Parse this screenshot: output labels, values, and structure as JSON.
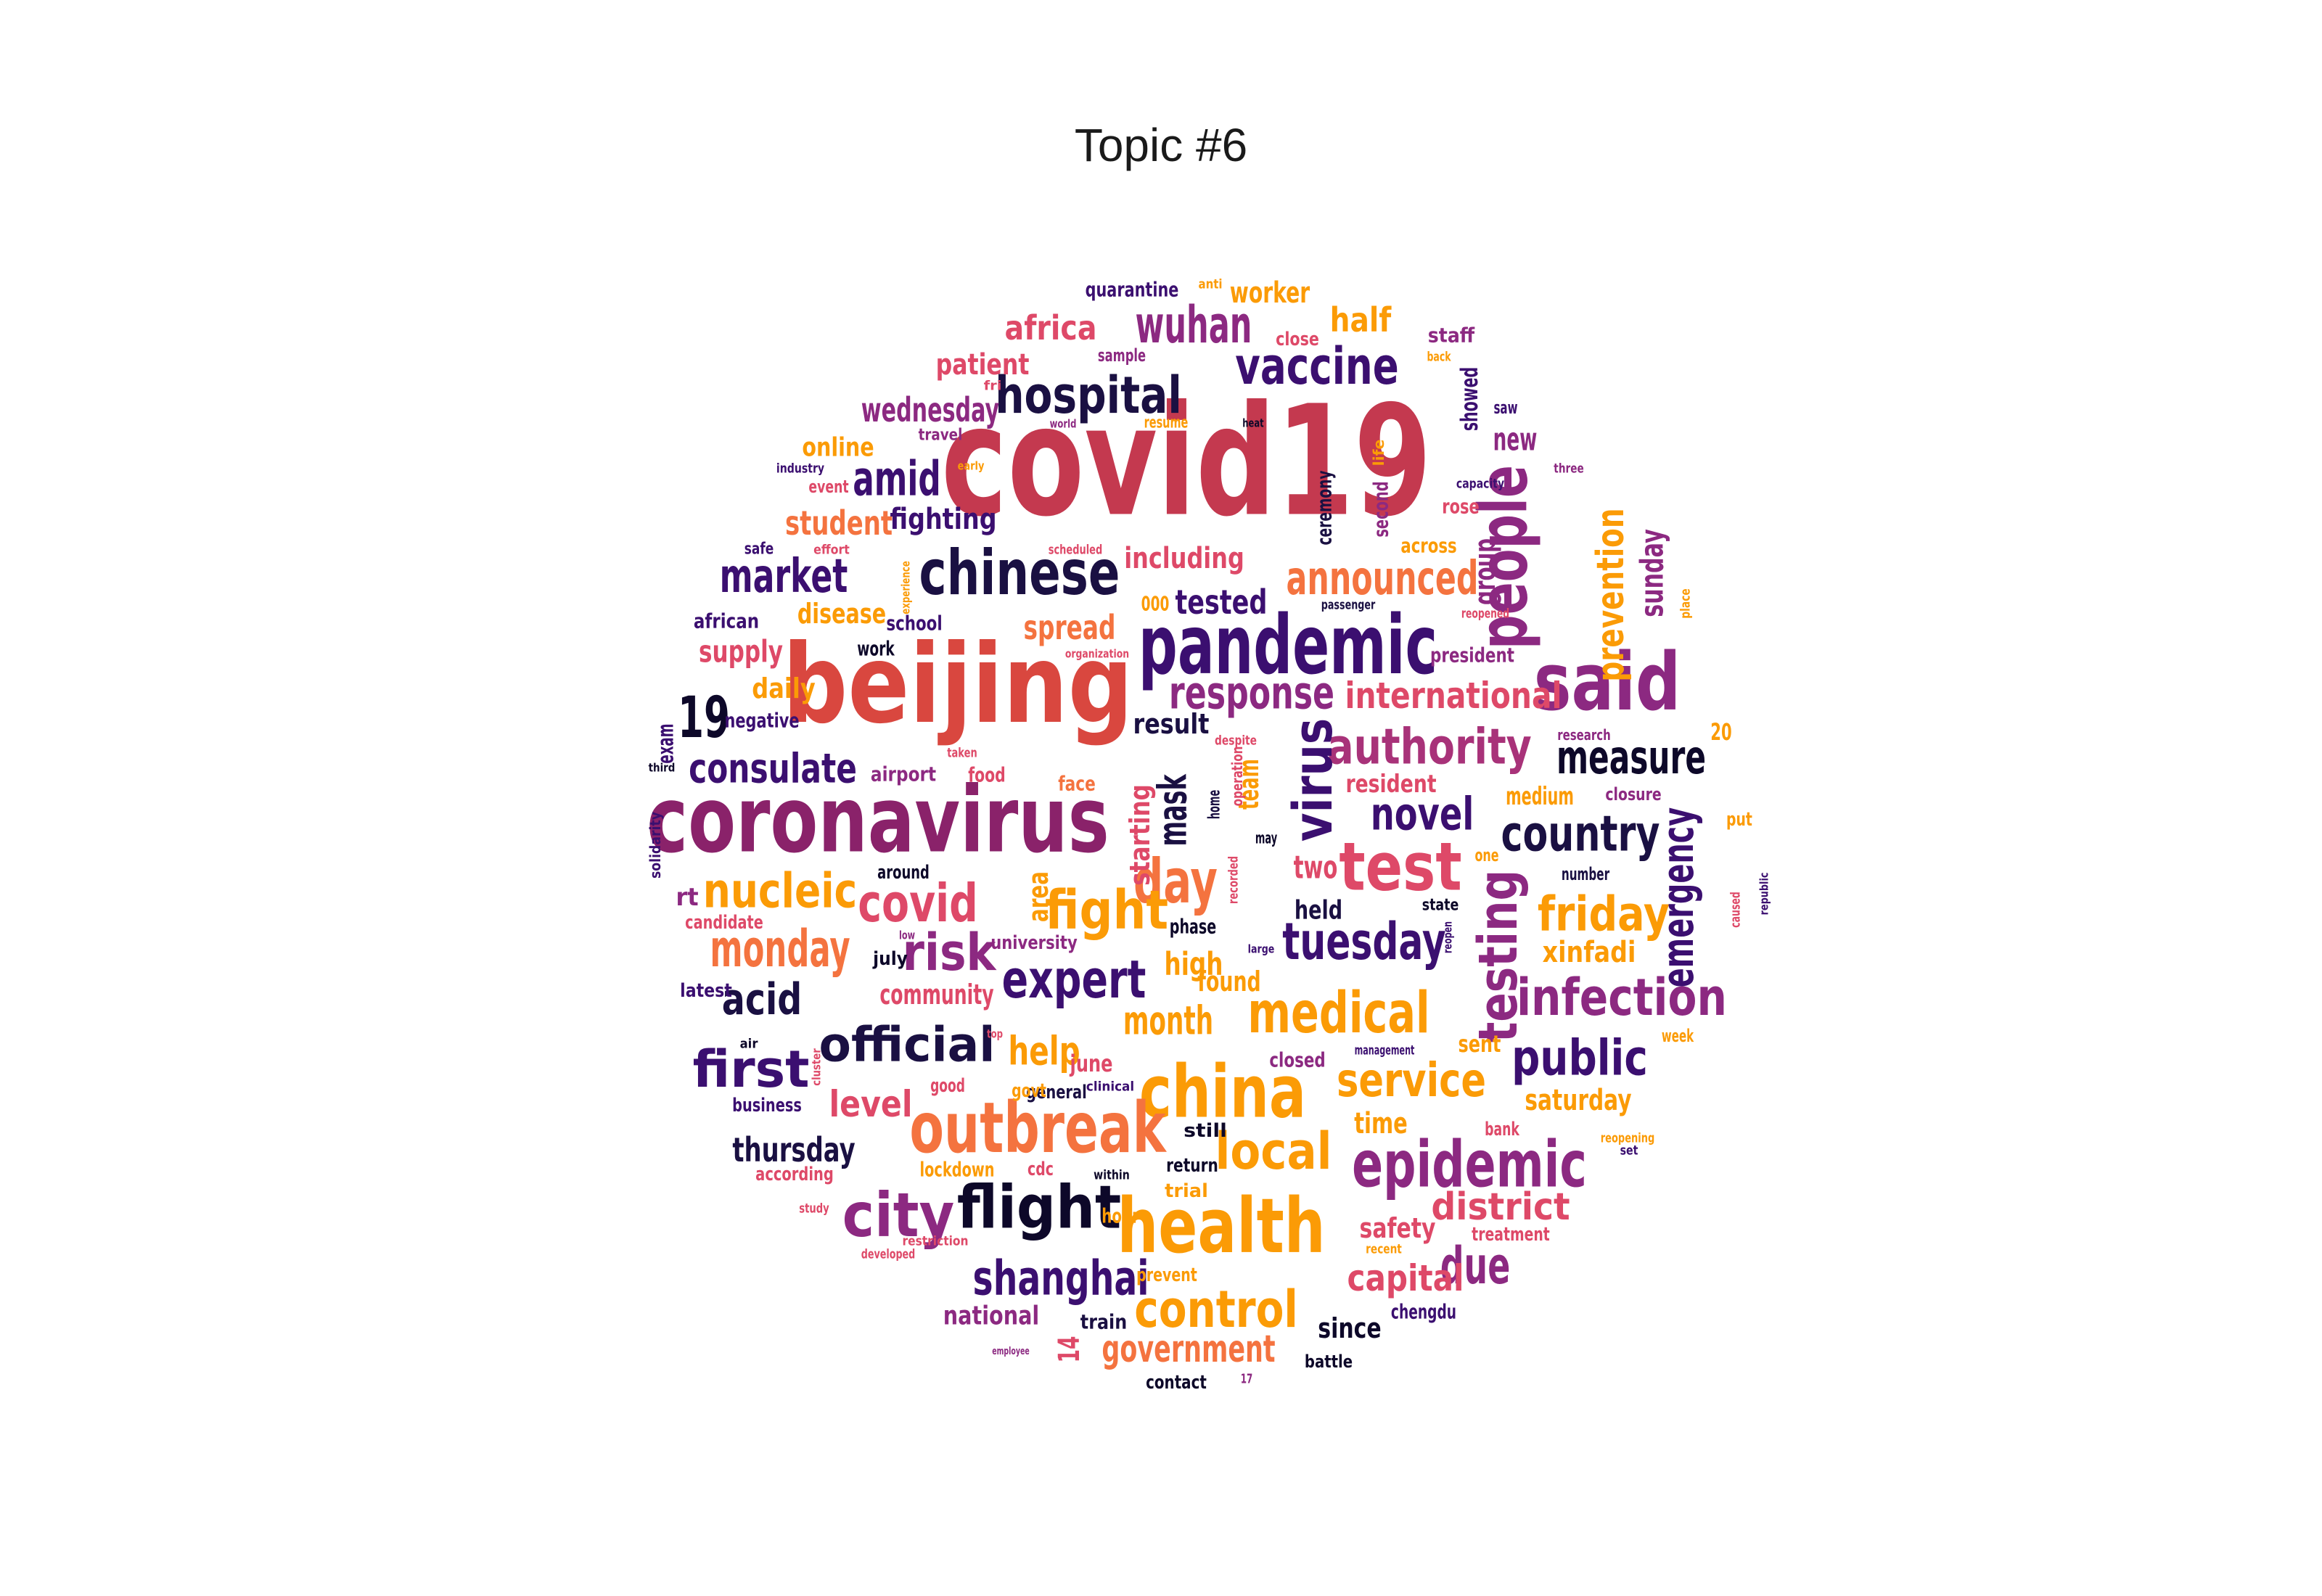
{
  "title": "Topic #6",
  "palette": [
    "#0d0829",
    "#3b0f70",
    "#8c2981",
    "#de4968",
    "#f4733f",
    "#fb9b06"
  ],
  "words": [
    {
      "text": "covid19",
      "c": "#c4394f"
    },
    {
      "text": "beijing",
      "c": "#d9473f"
    },
    {
      "text": "coronavirus",
      "c": "#8a226a"
    },
    {
      "text": "pandemic",
      "c": "#3b0f70"
    },
    {
      "text": "chinese",
      "c": "#1a1042"
    },
    {
      "text": "said",
      "c": "#8c2981"
    },
    {
      "text": "china",
      "c": "#fb9b06"
    },
    {
      "text": "health",
      "c": "#fb9b06"
    },
    {
      "text": "outbreak",
      "c": "#f4733f"
    },
    {
      "text": "epidemic",
      "c": "#8c2981"
    },
    {
      "text": "test",
      "c": "#de4968"
    },
    {
      "text": "people",
      "c": "#8c2981"
    },
    {
      "text": "hospital",
      "c": "#1a1042"
    },
    {
      "text": "vaccine",
      "c": "#3b0f70"
    },
    {
      "text": "wuhan",
      "c": "#8c2981"
    },
    {
      "text": "market",
      "c": "#3b0f70"
    },
    {
      "text": "amid",
      "c": "#3b0f70"
    },
    {
      "text": "announced",
      "c": "#f4733f"
    },
    {
      "text": "response",
      "c": "#8c2981"
    },
    {
      "text": "authority",
      "c": "#a83279"
    },
    {
      "text": "measure",
      "c": "#0d0829"
    },
    {
      "text": "consulate",
      "c": "#3b0f70"
    },
    {
      "text": "19",
      "c": "#0d0829"
    },
    {
      "text": "virus",
      "c": "#3b0f70"
    },
    {
      "text": "novel",
      "c": "#3b0f70"
    },
    {
      "text": "country",
      "c": "#1a1042"
    },
    {
      "text": "day",
      "c": "#f4733f"
    },
    {
      "text": "fight",
      "c": "#fb9b06"
    },
    {
      "text": "covid",
      "c": "#de4968"
    },
    {
      "text": "nucleic",
      "c": "#fb9b06"
    },
    {
      "text": "monday",
      "c": "#f4733f"
    },
    {
      "text": "risk",
      "c": "#8c2981"
    },
    {
      "text": "acid",
      "c": "#1a1042"
    },
    {
      "text": "expert",
      "c": "#3b0f70"
    },
    {
      "text": "medical",
      "c": "#fb9b06"
    },
    {
      "text": "tuesday",
      "c": "#3b0f70"
    },
    {
      "text": "testing",
      "c": "#8c2981"
    },
    {
      "text": "infection",
      "c": "#8c2981"
    },
    {
      "text": "friday",
      "c": "#fb9b06"
    },
    {
      "text": "emergency",
      "c": "#3b0f70"
    },
    {
      "text": "official",
      "c": "#1a1042"
    },
    {
      "text": "first",
      "c": "#3b0f70"
    },
    {
      "text": "city",
      "c": "#8c2981"
    },
    {
      "text": "flight",
      "c": "#0d0829"
    },
    {
      "text": "shanghai",
      "c": "#3b0f70"
    },
    {
      "text": "control",
      "c": "#fb9b06"
    },
    {
      "text": "government",
      "c": "#f4733f"
    },
    {
      "text": "local",
      "c": "#fb9b06"
    },
    {
      "text": "service",
      "c": "#fb9b06"
    },
    {
      "text": "public",
      "c": "#3b0f70"
    },
    {
      "text": "due",
      "c": "#8c2981"
    },
    {
      "text": "district",
      "c": "#de4968"
    },
    {
      "text": "capital",
      "c": "#de4968"
    },
    {
      "text": "month",
      "c": "#fb9b06"
    },
    {
      "text": "help",
      "c": "#fb9b06"
    },
    {
      "text": "level",
      "c": "#de4968"
    },
    {
      "text": "thursday",
      "c": "#1a1042"
    },
    {
      "text": "mask",
      "c": "#1a1042"
    },
    {
      "text": "spread",
      "c": "#f4733f"
    },
    {
      "text": "tested",
      "c": "#3b0f70"
    },
    {
      "text": "international",
      "c": "#de4968"
    },
    {
      "text": "prevention",
      "c": "#fb9b06"
    },
    {
      "text": "student",
      "c": "#f4733f"
    },
    {
      "text": "supply",
      "c": "#de4968"
    },
    {
      "text": "wednesday",
      "c": "#8c2981"
    },
    {
      "text": "africa",
      "c": "#de4968"
    },
    {
      "text": "patient",
      "c": "#de4968"
    },
    {
      "text": "worker",
      "c": "#fb9b06"
    },
    {
      "text": "half",
      "c": "#fb9b06"
    },
    {
      "text": "new",
      "c": "#8c2981"
    },
    {
      "text": "sunday",
      "c": "#8c2981"
    },
    {
      "text": "fighting",
      "c": "#3b0f70"
    },
    {
      "text": "including",
      "c": "#de4968"
    },
    {
      "text": "disease",
      "c": "#fb9b06"
    },
    {
      "text": "result",
      "c": "#1a1042"
    },
    {
      "text": "two",
      "c": "#de4968"
    },
    {
      "text": "high",
      "c": "#fb9b06"
    },
    {
      "text": "found",
      "c": "#fb9b06"
    },
    {
      "text": "xinfadi",
      "c": "#fb9b06"
    },
    {
      "text": "saturday",
      "c": "#fb9b06"
    },
    {
      "text": "time",
      "c": "#fb9b06"
    },
    {
      "text": "safety",
      "c": "#de4968"
    },
    {
      "text": "resident",
      "c": "#de4968"
    },
    {
      "text": "medium",
      "c": "#fb9b06"
    },
    {
      "text": "group",
      "c": "#8c2981"
    },
    {
      "text": "online",
      "c": "#fb9b06"
    },
    {
      "text": "daily",
      "c": "#fb9b06"
    },
    {
      "text": "community",
      "c": "#de4968"
    },
    {
      "text": "held",
      "c": "#1a1042"
    },
    {
      "text": "area",
      "c": "#fb9b06"
    },
    {
      "text": "team",
      "c": "#fb9b06"
    },
    {
      "text": "starting",
      "c": "#de4968"
    },
    {
      "text": "since",
      "c": "#0d0829"
    },
    {
      "text": "national",
      "c": "#8c2981"
    },
    {
      "text": "14",
      "c": "#de4968"
    },
    {
      "text": "showed",
      "c": "#3b0f70"
    },
    {
      "text": "ceremony",
      "c": "#1a1042"
    },
    {
      "text": "second",
      "c": "#8c2981"
    },
    {
      "text": "rose",
      "c": "#de4968"
    },
    {
      "text": "across",
      "c": "#fb9b06"
    },
    {
      "text": "president",
      "c": "#8c2981"
    },
    {
      "text": "sent",
      "c": "#fb9b06"
    },
    {
      "text": "june",
      "c": "#de4968"
    },
    {
      "text": "negative",
      "c": "#3b0f70"
    },
    {
      "text": "airport",
      "c": "#8c2981"
    },
    {
      "text": "food",
      "c": "#de4968"
    },
    {
      "text": "face",
      "c": "#f4733f"
    },
    {
      "text": "school",
      "c": "#3b0f70"
    },
    {
      "text": "work",
      "c": "#0d0829"
    },
    {
      "text": "african",
      "c": "#3b0f70"
    },
    {
      "text": "candidate",
      "c": "#de4968"
    },
    {
      "text": "around",
      "c": "#0d0829"
    },
    {
      "text": "university",
      "c": "#8c2981"
    },
    {
      "text": "phase",
      "c": "#0d0829"
    },
    {
      "text": "lockdown",
      "c": "#fb9b06"
    },
    {
      "text": "according",
      "c": "#de4968"
    },
    {
      "text": "business",
      "c": "#3b0f70"
    },
    {
      "text": "general",
      "c": "#1a1042"
    },
    {
      "text": "cdc",
      "c": "#de4968"
    },
    {
      "text": "return",
      "c": "#0d0829"
    },
    {
      "text": "still",
      "c": "#0d0829"
    },
    {
      "text": "trial",
      "c": "#fb9b06"
    },
    {
      "text": "hour",
      "c": "#fb9b06"
    },
    {
      "text": "prevent",
      "c": "#fb9b06"
    },
    {
      "text": "train",
      "c": "#1a1042"
    },
    {
      "text": "contact",
      "c": "#0d0829"
    },
    {
      "text": "battle",
      "c": "#0d0829"
    },
    {
      "text": "chengdu",
      "c": "#3b0f70"
    },
    {
      "text": "treatment",
      "c": "#de4968"
    },
    {
      "text": "bank",
      "c": "#de4968"
    },
    {
      "text": "number",
      "c": "#1a1042"
    },
    {
      "text": "one",
      "c": "#fb9b06"
    },
    {
      "text": "state",
      "c": "#0d0829"
    },
    {
      "text": "closure",
      "c": "#8c2981"
    },
    {
      "text": "research",
      "c": "#8c2981"
    },
    {
      "text": "20",
      "c": "#fb9b06"
    },
    {
      "text": "put",
      "c": "#fb9b06"
    },
    {
      "text": "week",
      "c": "#fb9b06"
    },
    {
      "text": "set",
      "c": "#3b0f70"
    },
    {
      "text": "reopening",
      "c": "#fb9b06"
    },
    {
      "text": "closed",
      "c": "#8c2981"
    },
    {
      "text": "management",
      "c": "#3b0f70"
    },
    {
      "text": "clinical",
      "c": "#3b0f70"
    },
    {
      "text": "good",
      "c": "#de4968"
    },
    {
      "text": "govt",
      "c": "#fb9b06"
    },
    {
      "text": "within",
      "c": "#0d0829"
    },
    {
      "text": "recent",
      "c": "#fb9b06"
    },
    {
      "text": "staff",
      "c": "#8c2981"
    },
    {
      "text": "back",
      "c": "#fb9b06"
    },
    {
      "text": "saw",
      "c": "#3b0f70"
    },
    {
      "text": "three",
      "c": "#8c2981"
    },
    {
      "text": "capacity",
      "c": "#3b0f70"
    },
    {
      "text": "life",
      "c": "#fb9b06"
    },
    {
      "text": "heat",
      "c": "#0d0829"
    },
    {
      "text": "world",
      "c": "#8c2981"
    },
    {
      "text": "resume",
      "c": "#fb9b06"
    },
    {
      "text": "close",
      "c": "#de4968"
    },
    {
      "text": "sample",
      "c": "#8c2981"
    },
    {
      "text": "quarantine",
      "c": "#3b0f70"
    },
    {
      "text": "anti",
      "c": "#fb9b06"
    },
    {
      "text": "fri",
      "c": "#de4968"
    },
    {
      "text": "travel",
      "c": "#8c2981"
    },
    {
      "text": "industry",
      "c": "#3b0f70"
    },
    {
      "text": "early",
      "c": "#fb9b06"
    },
    {
      "text": "event",
      "c": "#de4968"
    },
    {
      "text": "safe",
      "c": "#3b0f70"
    },
    {
      "text": "effort",
      "c": "#de4968"
    },
    {
      "text": "experience",
      "c": "#fb9b06"
    },
    {
      "text": "scheduled",
      "c": "#de4968"
    },
    {
      "text": "000",
      "c": "#fb9b06"
    },
    {
      "text": "passenger",
      "c": "#1a1042"
    },
    {
      "text": "reopened",
      "c": "#de4968"
    },
    {
      "text": "place",
      "c": "#fb9b06"
    },
    {
      "text": "organization",
      "c": "#de4968"
    },
    {
      "text": "despite",
      "c": "#de4968"
    },
    {
      "text": "operation",
      "c": "#de4968"
    },
    {
      "text": "taken",
      "c": "#de4968"
    },
    {
      "text": "home",
      "c": "#1a1042"
    },
    {
      "text": "may",
      "c": "#0d0829"
    },
    {
      "text": "recorded",
      "c": "#de4968"
    },
    {
      "text": "large",
      "c": "#3b0f70"
    },
    {
      "text": "reopen",
      "c": "#3b0f70"
    },
    {
      "text": "caused",
      "c": "#de4968"
    },
    {
      "text": "republic",
      "c": "#3b0f70"
    },
    {
      "text": "exam",
      "c": "#3b0f70"
    },
    {
      "text": "third",
      "c": "#0d0829"
    },
    {
      "text": "solidarity",
      "c": "#3b0f70"
    },
    {
      "text": "rt",
      "c": "#8c2981"
    },
    {
      "text": "low",
      "c": "#8c2981"
    },
    {
      "text": "july",
      "c": "#0d0829"
    },
    {
      "text": "latest",
      "c": "#3b0f70"
    },
    {
      "text": "air",
      "c": "#0d0829"
    },
    {
      "text": "cluster",
      "c": "#de4968"
    },
    {
      "text": "top",
      "c": "#de4968"
    },
    {
      "text": "study",
      "c": "#de4968"
    },
    {
      "text": "developed",
      "c": "#de4968"
    },
    {
      "text": "restriction",
      "c": "#de4968"
    },
    {
      "text": "employee",
      "c": "#8c2981"
    },
    {
      "text": "17",
      "c": "#8c2981"
    },
    {
      "text": "production",
      "c": "#3b0f70"
    }
  ]
}
